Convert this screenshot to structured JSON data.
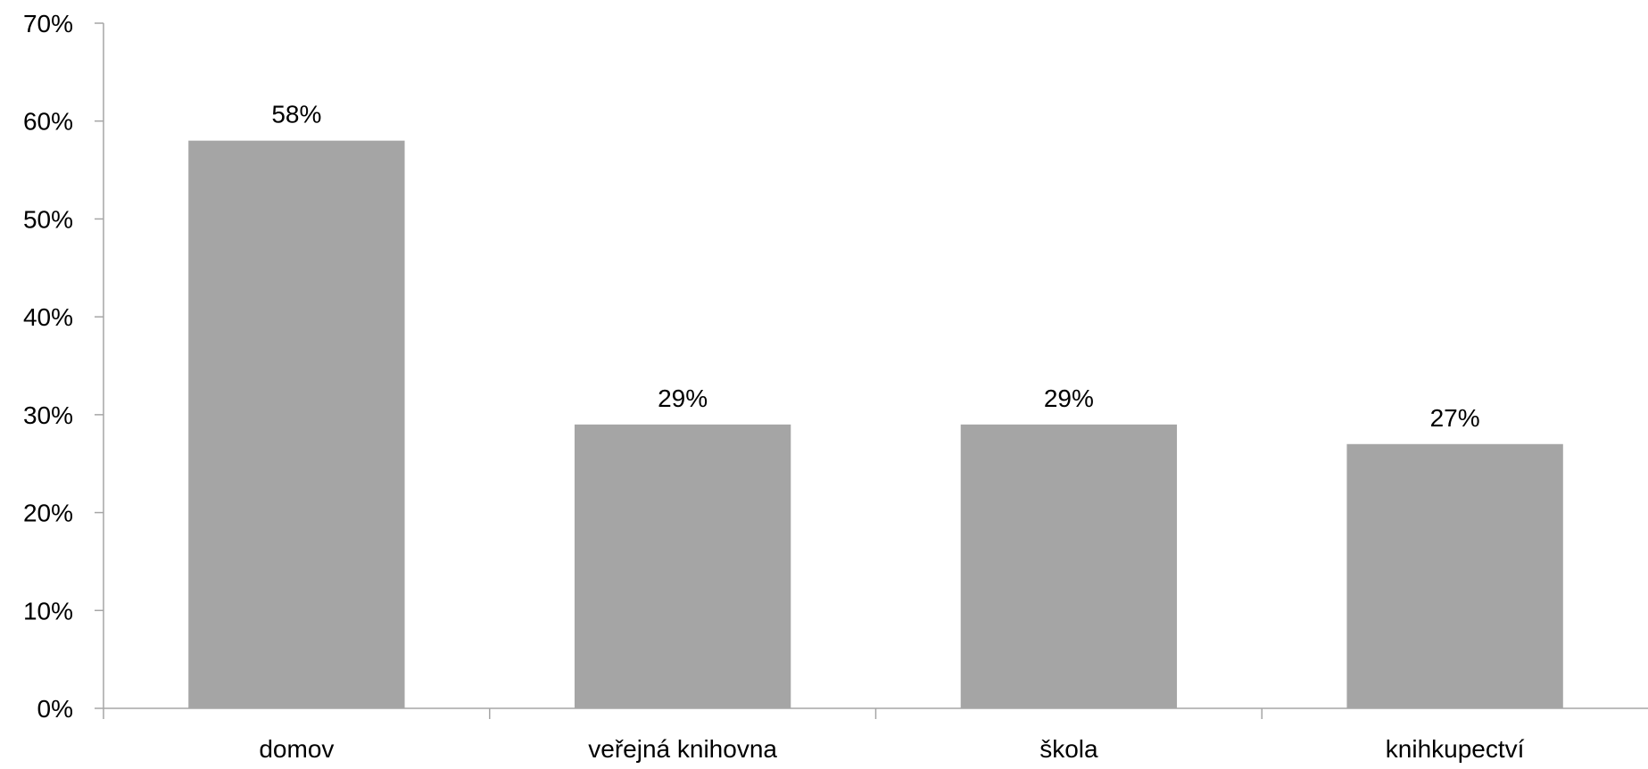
{
  "chart_data": {
    "type": "bar",
    "title": "",
    "xlabel": "",
    "ylabel": "",
    "categories": [
      "domov",
      "veřejná knihovna",
      "škola",
      "knihkupectví"
    ],
    "values": [
      58,
      29,
      29,
      27
    ],
    "data_labels": [
      "58%",
      "29%",
      "29%",
      "27%"
    ],
    "ylim": [
      0,
      70
    ],
    "yticks": [
      0,
      10,
      20,
      30,
      40,
      50,
      60,
      70
    ],
    "ytick_labels": [
      "0%",
      "10%",
      "20%",
      "30%",
      "40%",
      "50%",
      "60%",
      "70%"
    ],
    "grid": false,
    "legend": "none",
    "colors": {
      "bar": "#a5a5a5",
      "axis": "#a6a6a6",
      "text": "#000000",
      "background": "#ffffff"
    }
  }
}
